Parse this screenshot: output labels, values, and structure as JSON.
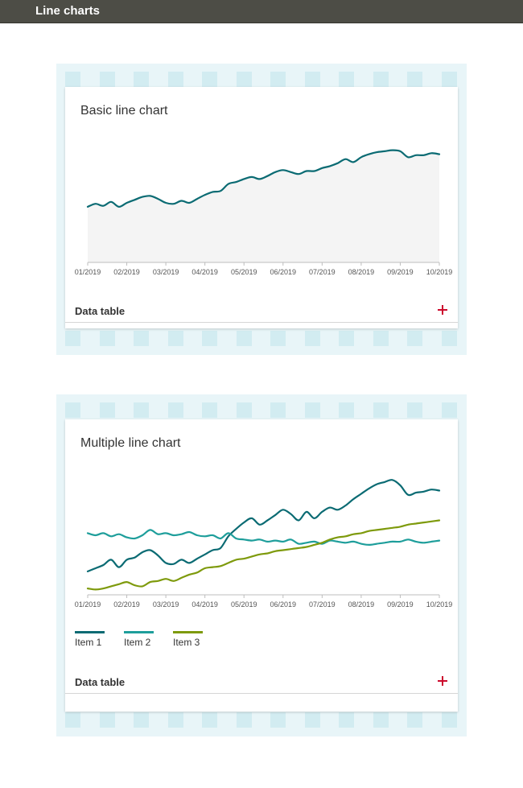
{
  "header": {
    "title": "Line charts"
  },
  "colors": {
    "header_bg": "#4d4d46",
    "series_1": "#0b6b73",
    "series_2": "#1e9e9b",
    "series_3": "#7e9a0c",
    "area_fill": "#f4f4f4",
    "plus_icon": "#cc0a2d"
  },
  "cards": [
    {
      "title": "Basic line chart",
      "data_table_label": "Data table",
      "expand_icon": "plus-icon"
    },
    {
      "title": "Multiple line chart",
      "data_table_label": "Data table",
      "expand_icon": "plus-icon"
    }
  ],
  "chart_data": [
    {
      "type": "area",
      "title": "Basic line chart",
      "x_ticks": [
        "01/2019",
        "02/2019",
        "03/2019",
        "04/2019",
        "05/2019",
        "06/2019",
        "07/2019",
        "08/2019",
        "09/2019",
        "10/2019"
      ],
      "grid": false,
      "series": [
        {
          "x": [
            0,
            0.2,
            0.4,
            0.6,
            0.8,
            1,
            1.2,
            1.4,
            1.6,
            1.8,
            2,
            2.2,
            2.4,
            2.6,
            2.8,
            3,
            3.2,
            3.4,
            3.6,
            3.8,
            4,
            4.2,
            4.4,
            4.6,
            4.8,
            5,
            5.2,
            5.4,
            5.6,
            5.8,
            6,
            6.2,
            6.4,
            6.6,
            6.8,
            7,
            7.2,
            7.4,
            7.6,
            7.8,
            8,
            8.2,
            8.4,
            8.6,
            8.8,
            9
          ],
          "values": [
            56,
            59,
            57,
            61,
            56,
            60,
            63,
            66,
            67,
            64,
            60,
            59,
            62,
            60,
            64,
            68,
            71,
            72,
            79,
            81,
            84,
            86,
            84,
            87,
            91,
            93,
            91,
            89,
            92,
            92,
            95,
            97,
            100,
            104,
            101,
            106,
            109,
            111,
            112,
            113,
            112,
            106,
            108,
            108,
            110,
            109
          ]
        }
      ]
    },
    {
      "type": "line",
      "title": "Multiple line chart",
      "x_ticks": [
        "01/2019",
        "02/2019",
        "03/2019",
        "04/2019",
        "05/2019",
        "06/2019",
        "07/2019",
        "08/2019",
        "09/2019",
        "10/2019"
      ],
      "grid": false,
      "legend_position": "bottom-left",
      "series": [
        {
          "name": "Item 1",
          "color": "#0b6b73",
          "x": [
            0,
            0.2,
            0.4,
            0.6,
            0.8,
            1,
            1.2,
            1.4,
            1.6,
            1.8,
            2,
            2.2,
            2.4,
            2.6,
            2.8,
            3,
            3.2,
            3.4,
            3.6,
            3.8,
            4,
            4.2,
            4.4,
            4.6,
            4.8,
            5,
            5.2,
            5.4,
            5.6,
            5.8,
            6,
            6.2,
            6.4,
            6.6,
            6.8,
            7,
            7.2,
            7.4,
            7.6,
            7.8,
            8,
            8.2,
            8.4,
            8.6,
            8.8,
            9
          ],
          "values": [
            22,
            25,
            28,
            33,
            26,
            33,
            35,
            40,
            42,
            37,
            30,
            29,
            33,
            30,
            34,
            38,
            42,
            44,
            55,
            62,
            68,
            72,
            66,
            70,
            75,
            80,
            76,
            70,
            78,
            72,
            78,
            82,
            80,
            84,
            90,
            95,
            100,
            104,
            106,
            108,
            103,
            94,
            96,
            97,
            99,
            98
          ]
        },
        {
          "name": "Item 2",
          "color": "#1e9e9b",
          "x": [
            0,
            0.2,
            0.4,
            0.6,
            0.8,
            1,
            1.2,
            1.4,
            1.6,
            1.8,
            2,
            2.2,
            2.4,
            2.6,
            2.8,
            3,
            3.2,
            3.4,
            3.6,
            3.8,
            4,
            4.2,
            4.4,
            4.6,
            4.8,
            5,
            5.2,
            5.4,
            5.6,
            5.8,
            6,
            6.2,
            6.4,
            6.6,
            6.8,
            7,
            7.2,
            7.4,
            7.6,
            7.8,
            8,
            8.2,
            8.4,
            8.6,
            8.8,
            9
          ],
          "values": [
            58,
            56,
            58,
            55,
            57,
            54,
            53,
            56,
            61,
            57,
            58,
            56,
            57,
            59,
            56,
            55,
            56,
            53,
            58,
            53,
            52,
            51,
            52,
            50,
            51,
            50,
            52,
            48,
            49,
            50,
            48,
            51,
            50,
            49,
            50,
            48,
            47,
            48,
            49,
            50,
            50,
            52,
            50,
            49,
            50,
            51
          ]
        },
        {
          "name": "Item 3",
          "color": "#7e9a0c",
          "x": [
            0,
            0.2,
            0.4,
            0.6,
            0.8,
            1,
            1.2,
            1.4,
            1.6,
            1.8,
            2,
            2.2,
            2.4,
            2.6,
            2.8,
            3,
            3.2,
            3.4,
            3.6,
            3.8,
            4,
            4.2,
            4.4,
            4.6,
            4.8,
            5,
            5.2,
            5.4,
            5.6,
            5.8,
            6,
            6.2,
            6.4,
            6.6,
            6.8,
            7,
            7.2,
            7.4,
            7.6,
            7.8,
            8,
            8.2,
            8.4,
            8.6,
            8.8,
            9
          ],
          "values": [
            6,
            5,
            6,
            8,
            10,
            12,
            9,
            8,
            12,
            13,
            15,
            13,
            16,
            19,
            21,
            25,
            26,
            27,
            30,
            33,
            34,
            36,
            38,
            39,
            41,
            42,
            43,
            44,
            45,
            47,
            49,
            52,
            54,
            55,
            57,
            58,
            60,
            61,
            62,
            63,
            64,
            66,
            67,
            68,
            69,
            70
          ]
        }
      ]
    }
  ]
}
